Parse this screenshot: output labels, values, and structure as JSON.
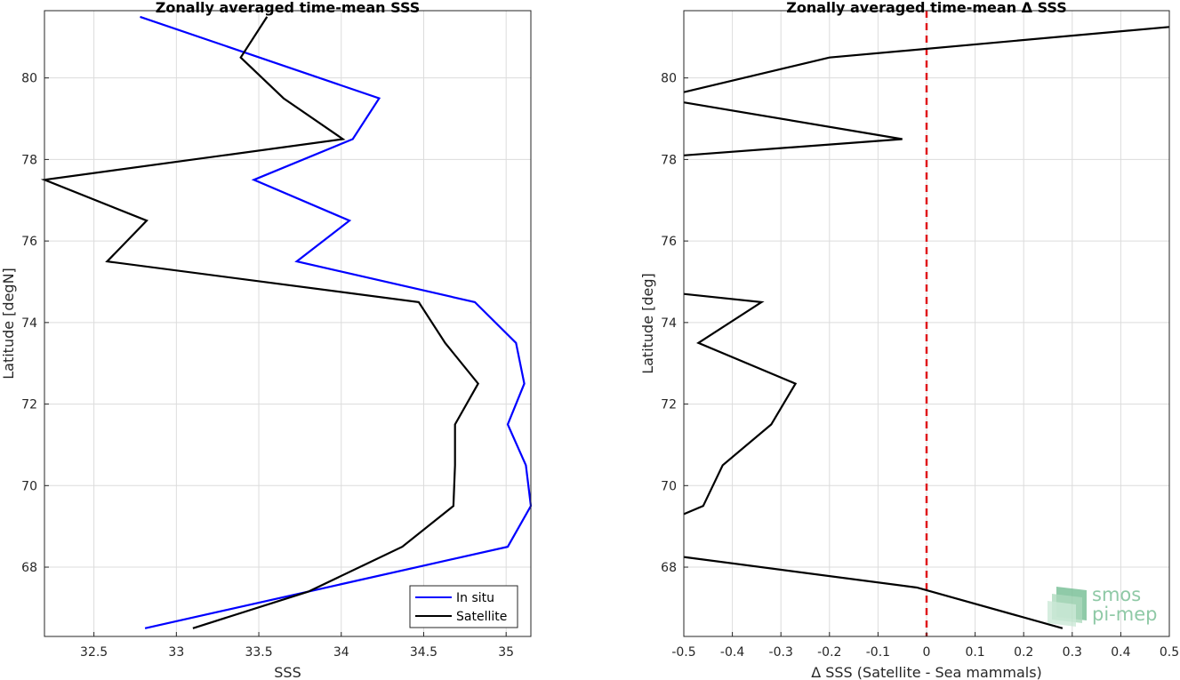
{
  "chart_data": [
    {
      "type": "line",
      "title": "Zonally averaged time-mean SSS",
      "xlabel": "SSS",
      "ylabel": "Latitude [degN]",
      "xlim": [
        32.2,
        35.15
      ],
      "ylim": [
        66.3,
        81.65
      ],
      "xticks": [
        32.5,
        33,
        33.5,
        34,
        34.5,
        35
      ],
      "xtick_labels": [
        "32.5",
        "33",
        "33.5",
        "34",
        "34.5",
        "35"
      ],
      "yticks": [
        68,
        70,
        72,
        74,
        76,
        78,
        80
      ],
      "ytick_labels": [
        "68",
        "70",
        "72",
        "74",
        "76",
        "78",
        "80"
      ],
      "grid": true,
      "legend_position": "bottom-right",
      "series": [
        {
          "name": "In situ",
          "color": "#0000ff",
          "x": [
            32.81,
            35.01,
            35.15,
            35.12,
            35.01,
            35.11,
            35.06,
            34.81,
            33.73,
            34.05,
            33.47,
            34.07,
            34.23,
            32.78
          ],
          "y": [
            66.5,
            68.5,
            69.5,
            70.5,
            71.5,
            72.5,
            73.5,
            74.5,
            75.5,
            76.5,
            77.5,
            78.5,
            79.5,
            81.5
          ]
        },
        {
          "name": "Satellite",
          "color": "#000000",
          "x": [
            33.1,
            33.8,
            34.37,
            34.68,
            34.69,
            34.69,
            34.83,
            34.63,
            34.47,
            32.58,
            32.82,
            32.2,
            34.01,
            33.65,
            33.39,
            33.55
          ],
          "y": [
            66.5,
            67.4,
            68.5,
            69.5,
            70.5,
            71.5,
            72.5,
            73.5,
            74.5,
            75.5,
            76.5,
            77.5,
            78.5,
            79.5,
            80.5,
            81.5
          ]
        }
      ]
    },
    {
      "type": "line",
      "title": "Zonally averaged time-mean Δ SSS",
      "xlabel": "Δ SSS (Satellite - Sea mammals)",
      "ylabel": "Latitude [deg]",
      "xlim": [
        -0.5,
        0.5
      ],
      "ylim": [
        66.3,
        81.65
      ],
      "xticks": [
        -0.5,
        -0.4,
        -0.3,
        -0.2,
        -0.1,
        0,
        0.1,
        0.2,
        0.3,
        0.4,
        0.5
      ],
      "xtick_labels": [
        "-0.5",
        "-0.4",
        "-0.3",
        "-0.2",
        "-0.1",
        "0",
        "0.1",
        "0.2",
        "0.3",
        "0.4",
        "0.5"
      ],
      "yticks": [
        68,
        70,
        72,
        74,
        76,
        78,
        80
      ],
      "ytick_labels": [
        "68",
        "70",
        "72",
        "74",
        "76",
        "78",
        "80"
      ],
      "grid": true,
      "reference_line": {
        "x": 0,
        "color": "#e0191c",
        "style": "dashed"
      },
      "series": [
        {
          "color": "#000000",
          "segments": [
            {
              "x": [
                0.28,
                -0.02,
                -0.5
              ],
              "y": [
                66.5,
                67.5,
                68.25
              ]
            },
            {
              "x": [
                -0.5,
                -0.46,
                -0.42,
                -0.32,
                -0.27,
                -0.47,
                -0.34,
                -0.5
              ],
              "y": [
                69.3,
                69.5,
                70.5,
                71.5,
                72.5,
                73.5,
                74.5,
                74.7
              ]
            },
            {
              "x": [
                -0.5,
                -0.05,
                -0.5
              ],
              "y": [
                78.1,
                78.5,
                79.4
              ]
            },
            {
              "x": [
                -0.5,
                -0.2,
                0.5
              ],
              "y": [
                79.65,
                80.5,
                81.25
              ]
            }
          ]
        }
      ]
    }
  ],
  "logo": {
    "line1": "smos",
    "line2": "pi-mep",
    "color": "#8fc9a6"
  }
}
